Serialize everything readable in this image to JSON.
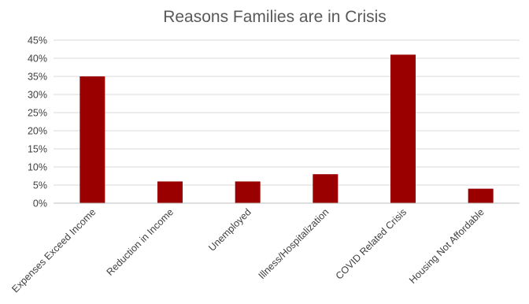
{
  "chart_data": {
    "type": "bar",
    "title": "Reasons Families are in Crisis",
    "categories": [
      "Expenses Exceed Income",
      "Reduction in Income",
      "Unemployed",
      "Illness/Hospitalization",
      "COVID Related Crisis",
      "Housing Not Affordable"
    ],
    "values": [
      35,
      6,
      6,
      8,
      41,
      4
    ],
    "unit": "%",
    "ylim": [
      0,
      45
    ],
    "yticks": [
      0,
      5,
      10,
      15,
      20,
      25,
      30,
      35,
      40,
      45
    ],
    "ytick_labels": [
      "0%",
      "5%",
      "10%",
      "15%",
      "20%",
      "25%",
      "30%",
      "35%",
      "40%",
      "45%"
    ],
    "grid": true,
    "legend": "none",
    "bar_color": "#9b0000"
  }
}
